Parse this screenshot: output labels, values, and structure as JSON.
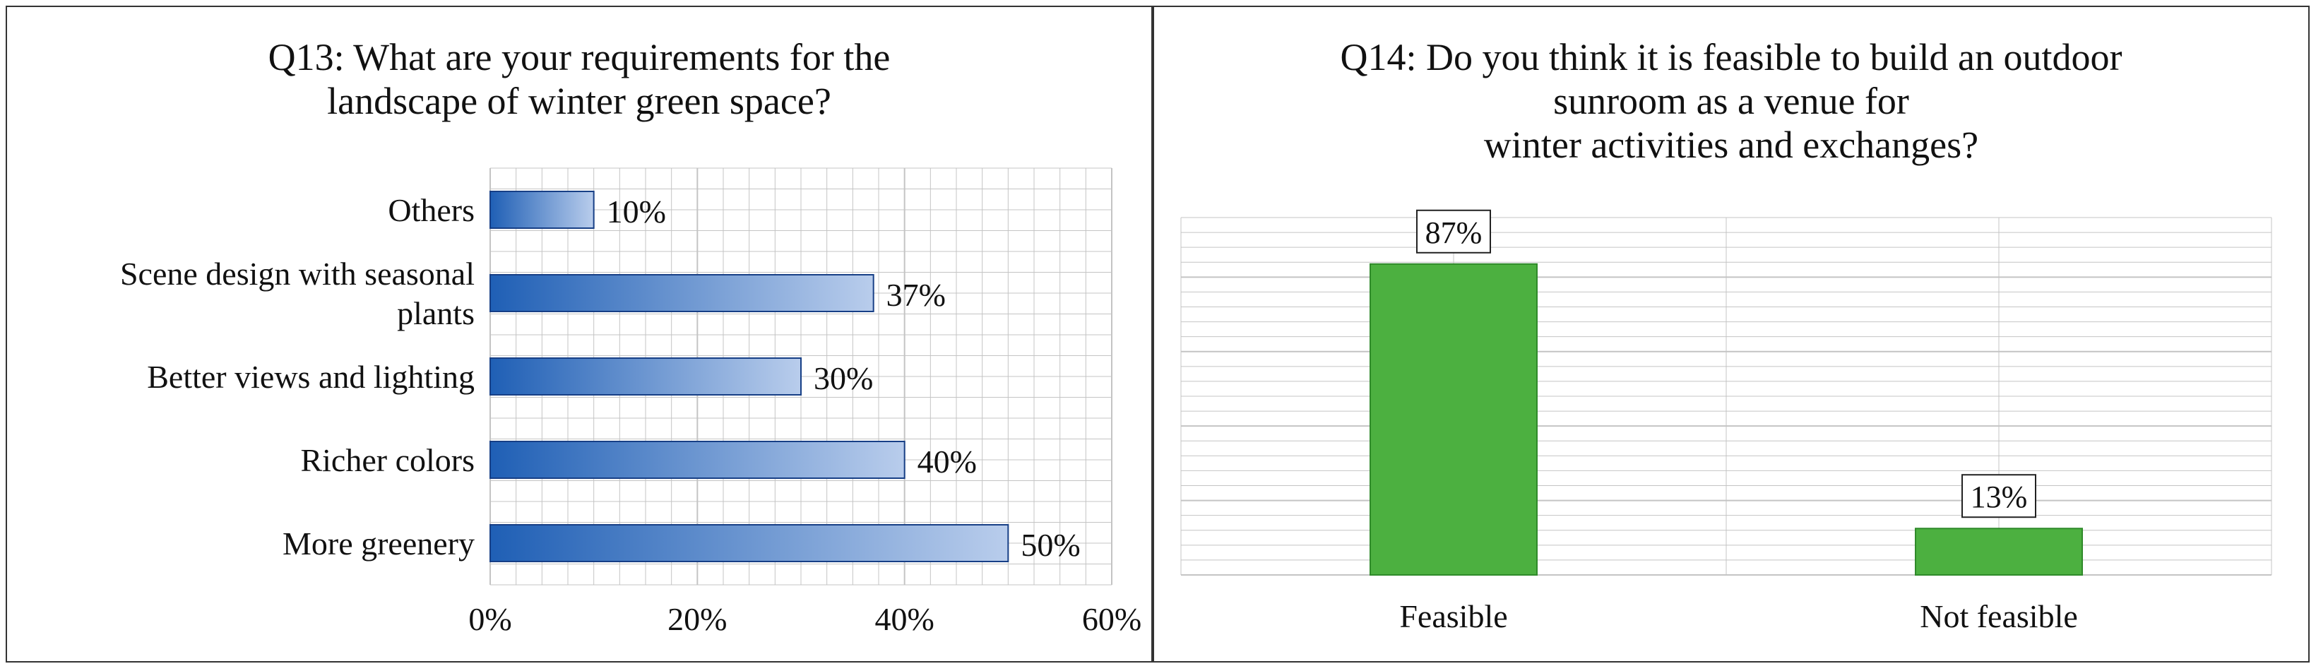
{
  "chart_data": [
    {
      "type": "bar",
      "orientation": "horizontal",
      "title": "Q13: What are your requirements for the\nlandscape of winter green space?",
      "categories": [
        "Others",
        "Scene design with seasonal plants",
        "Better views and lighting",
        "Richer colors",
        "More greenery"
      ],
      "category_lines": [
        [
          "Others"
        ],
        [
          "Scene design with seasonal",
          "plants"
        ],
        [
          "Better views and lighting"
        ],
        [
          "Richer colors"
        ],
        [
          "More greenery"
        ]
      ],
      "values": [
        10,
        37,
        30,
        40,
        50
      ],
      "value_labels": [
        "10%",
        "37%",
        "30%",
        "40%",
        "50%"
      ],
      "xlim": [
        0,
        60
      ],
      "xticks": [
        0,
        20,
        40,
        60
      ],
      "xtick_labels": [
        "0%",
        "20%",
        "40%",
        "60%"
      ],
      "grid": true,
      "colors": {
        "bar_dark": "#1f5fb5",
        "bar_light": "#b9cdec",
        "bar_edge": "#173f86",
        "grid": "#c4c4c4"
      }
    },
    {
      "type": "bar",
      "orientation": "vertical",
      "title": "Q14: Do you think it is feasible to build an outdoor\nsunroom as a venue for\nwinter activities and exchanges?",
      "categories": [
        "Feasible",
        "Not feasible"
      ],
      "values": [
        87,
        13
      ],
      "value_labels": [
        "87%",
        "13%"
      ],
      "ylim": [
        0,
        100
      ],
      "grid": true,
      "colors": {
        "bar_fill": "#4cb040",
        "bar_edge": "#2f8a2a",
        "grid": "#c4c4c4"
      }
    }
  ]
}
